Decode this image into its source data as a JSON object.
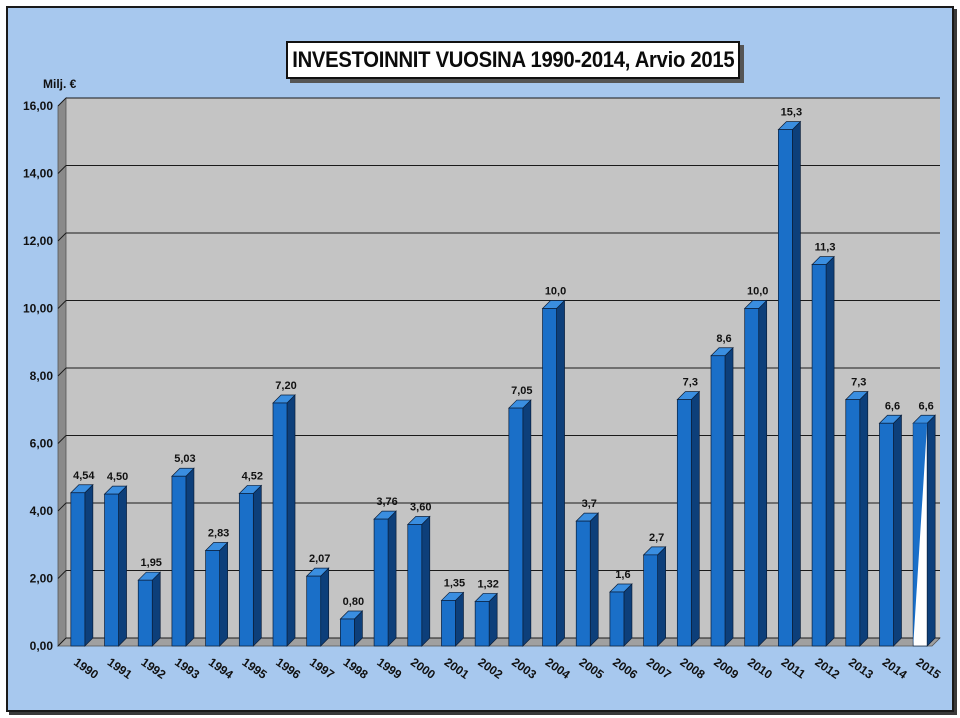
{
  "chart_data": {
    "type": "bar",
    "title": "INVESTOINNIT VUOSINA 1990-2014, Arvio 2015",
    "ylabel": "Milj. €",
    "xlabel": "",
    "ylim": [
      0,
      16
    ],
    "y_ticks": [
      "0,00",
      "2,00",
      "4,00",
      "6,00",
      "8,00",
      "10,00",
      "12,00",
      "14,00",
      "16,00"
    ],
    "y_tick_values": [
      0,
      2,
      4,
      6,
      8,
      10,
      12,
      14,
      16
    ],
    "grid": true,
    "legend": "none",
    "categories": [
      "1990",
      "1991",
      "1992",
      "1993",
      "1994",
      "1995",
      "1996",
      "1997",
      "1998",
      "1999",
      "2000",
      "2001",
      "2002",
      "2003",
      "2004",
      "2005",
      "2006",
      "2007",
      "2008",
      "2009",
      "2010",
      "2011",
      "2012",
      "2013",
      "2014",
      "2015"
    ],
    "values": [
      4.54,
      4.5,
      1.95,
      5.03,
      2.83,
      4.52,
      7.2,
      2.07,
      0.8,
      3.76,
      3.6,
      1.35,
      1.32,
      7.05,
      10.0,
      3.7,
      1.6,
      2.7,
      7.3,
      8.6,
      10.0,
      15.3,
      11.3,
      7.3,
      6.6,
      6.6
    ],
    "value_labels": [
      "4,54",
      "4,50",
      "1,95",
      "5,03",
      "2,83",
      "4,52",
      "7,20",
      "2,07",
      "0,80",
      "3,76",
      "3,60",
      "1,35",
      "1,32",
      "7,05",
      "10,0",
      "3,7",
      "1,6",
      "2,7",
      "7,3",
      "8,6",
      "10,0",
      "15,3",
      "11,3",
      "7,3",
      "6,6",
      "6,6"
    ],
    "estimate_category": "2015",
    "colors": {
      "bar_front": "#1a6fc8",
      "bar_side": "#0d3f7a",
      "bar_top": "#3a8ee0",
      "estimate_fill": "#ffffff",
      "plot_background": "#c4c4c4",
      "wall_left": "#8a8a8a",
      "floor": "#a0a0a0",
      "grid": "#1a1a1a",
      "frame_background": "#a7c8ee"
    }
  }
}
